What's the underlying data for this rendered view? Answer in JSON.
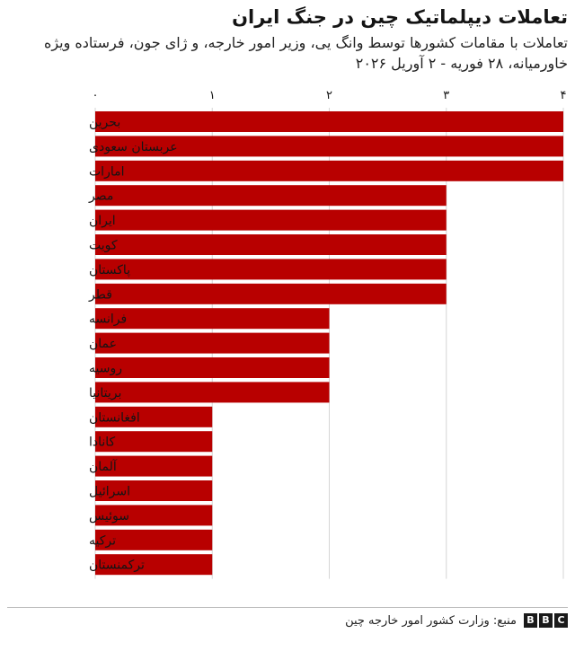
{
  "header": {
    "title": "تعاملات دیپلماتیک چین در جنگ ایران",
    "subtitle": "تعاملات با مقامات کشورها توسط وانگ یی، وزیر امور خارجه، و ژای جون، فرستاده ویژه خاورمیانه، ۲۸ فوریه - ۲ آوریل ۲۰۲۶"
  },
  "chart_data": {
    "type": "bar",
    "orientation": "horizontal",
    "categories": [
      "بحرین",
      "عربستان سعودی",
      "امارات",
      "مصر",
      "ایران",
      "کویت",
      "پاکستان",
      "قطر",
      "فرانسه",
      "عمان",
      "روسیه",
      "بریتانیا",
      "افغانستان",
      "کانادا",
      "آلمان",
      "اسرائیل",
      "سوئیس",
      "ترکیه",
      "ترکمنستان"
    ],
    "values": [
      4,
      4,
      4,
      3,
      3,
      3,
      3,
      3,
      2,
      2,
      2,
      2,
      1,
      1,
      1,
      1,
      1,
      1,
      1
    ],
    "xlim": [
      0,
      4
    ],
    "x_ticks": [
      0,
      1,
      2,
      3,
      4
    ],
    "x_tick_labels": [
      "۰",
      "۱",
      "۲",
      "۳",
      "۴"
    ],
    "axis_position": "top",
    "grid": true,
    "colors": {
      "bar": "#b80000",
      "grid": "#d6d6d6",
      "text": "#141414"
    }
  },
  "footer": {
    "source": "منبع: وزارت کشور امور خارجه چین",
    "logo_letters": [
      "B",
      "B",
      "C"
    ]
  }
}
